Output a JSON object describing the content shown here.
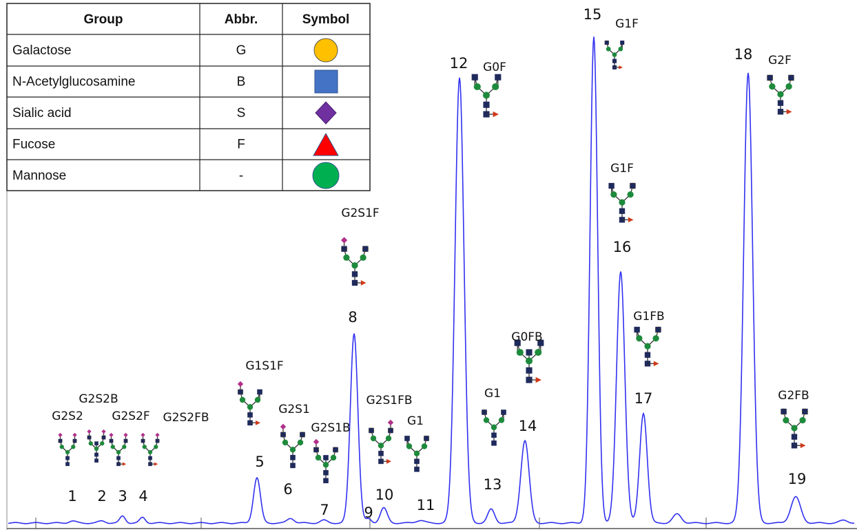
{
  "table": {
    "header": [
      "Group",
      "Abbr.",
      "Symbol"
    ],
    "rows": [
      [
        "Galactose",
        "G"
      ],
      [
        "N-Acetylglucosamine",
        "B"
      ],
      [
        "Sialic acid",
        "S"
      ],
      [
        "Fucose",
        "F"
      ],
      [
        "Mannose",
        "-"
      ]
    ]
  },
  "peaks": [
    "1",
    "2",
    "3",
    "4",
    "5",
    "6",
    "7",
    "8",
    "9",
    "10",
    "11",
    "12",
    "13",
    "14",
    "15",
    "16",
    "17",
    "18",
    "19"
  ],
  "glycans": [
    "G2S2",
    "G2S2B",
    "G2S2F",
    "G2S2FB",
    "G1S1F",
    "G2S1",
    "G2S1B",
    "G2S1F",
    "G2S1FB",
    "G1",
    "G0F",
    "G1F",
    "G1F",
    "G0FB",
    "G1FB",
    "G1",
    "G2F",
    "G2FB"
  ]
}
